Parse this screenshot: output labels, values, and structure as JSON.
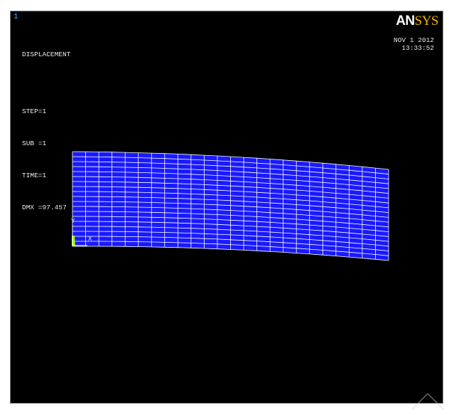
{
  "window_number": "1",
  "logo": {
    "part1": "AN",
    "part2": "SYS"
  },
  "plot_info": {
    "title": "DISPLACEMENT",
    "step": "STEP=1",
    "sub": "SUB =1",
    "time": "TIME=1",
    "dmx": "DMX =97.457"
  },
  "date": "NOV  1 2012",
  "time": "13:33:52",
  "triad": {
    "x_label": "X",
    "y_label": "Y"
  },
  "colors": {
    "background": "#000000",
    "element_fill": "#1a1aff",
    "mesh_lines": "#ffffff",
    "logo_accent": "#f2b300",
    "support_marker": "#9cff00"
  }
}
